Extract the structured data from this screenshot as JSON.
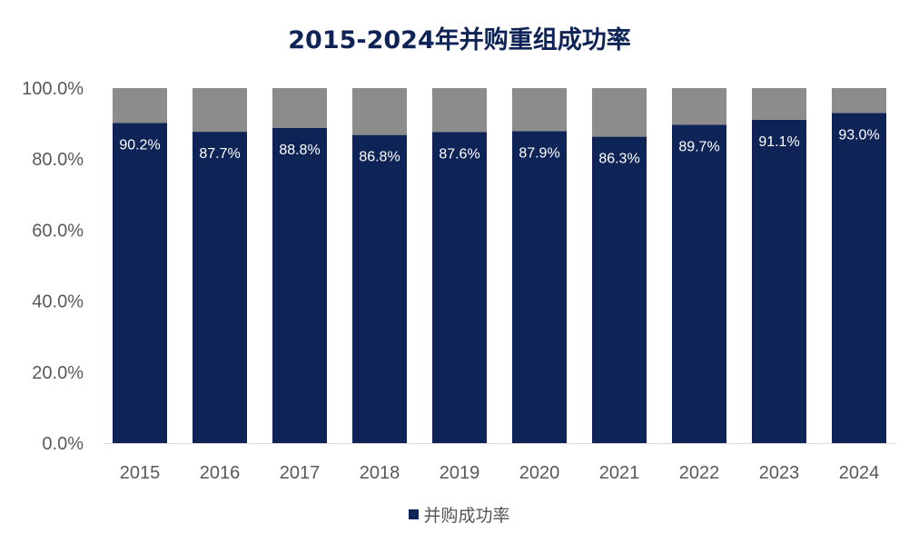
{
  "chart_data": {
    "type": "bar",
    "stacked": true,
    "title": "2015-2024年并购重组成功率",
    "categories": [
      "2015",
      "2016",
      "2017",
      "2018",
      "2019",
      "2020",
      "2021",
      "2022",
      "2023",
      "2024"
    ],
    "series": [
      {
        "name": "并购成功率",
        "values": [
          90.2,
          87.7,
          88.8,
          86.8,
          87.6,
          87.9,
          86.3,
          89.7,
          91.1,
          93.0
        ],
        "labels": [
          "90.2%",
          "87.7%",
          "88.8%",
          "86.8%",
          "87.6%",
          "87.9%",
          "86.3%",
          "89.7%",
          "91.1%",
          "93.0%"
        ],
        "color": "#0f2456"
      },
      {
        "values": [
          9.8,
          12.3,
          11.2,
          13.2,
          12.4,
          12.1,
          13.7,
          10.3,
          8.9,
          7.0
        ],
        "color": "#8c8c8c"
      }
    ],
    "ylim": [
      0,
      100
    ],
    "yticks": [
      "0.0%",
      "20.0%",
      "40.0%",
      "60.0%",
      "80.0%",
      "100.0%"
    ],
    "grid": false,
    "legend": "bottom"
  }
}
